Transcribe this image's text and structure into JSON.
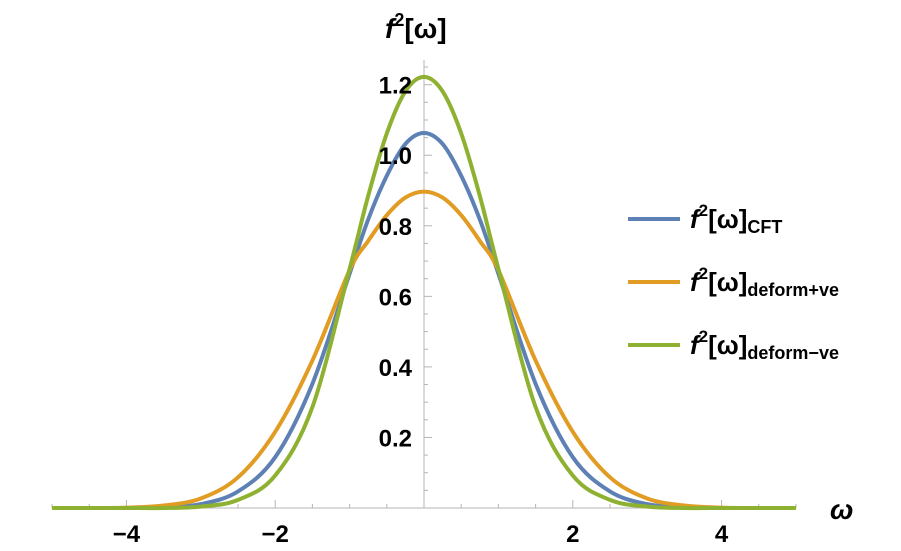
{
  "chart_data": {
    "type": "line",
    "title": "",
    "xlabel": "ω",
    "ylabel": {
      "fn": "f",
      "sup": "2",
      "arg": "[ω]"
    },
    "xlim": [
      -5,
      5
    ],
    "ylim": [
      0,
      1.27
    ],
    "x_ticks": [
      {
        "value": -4,
        "label": "−4"
      },
      {
        "value": -2,
        "label": "−2"
      },
      {
        "value": 2,
        "label": "2"
      },
      {
        "value": 4,
        "label": "4"
      }
    ],
    "y_ticks": [
      {
        "value": 0.2,
        "label": "0.2"
      },
      {
        "value": 0.4,
        "label": "0.4"
      },
      {
        "value": 0.6,
        "label": "0.6"
      },
      {
        "value": 0.8,
        "label": "0.8"
      },
      {
        "value": 1.0,
        "label": "1.0"
      },
      {
        "value": 1.2,
        "label": "1.2"
      }
    ],
    "legend_position": "right",
    "x": [
      -5,
      -4.5,
      -4,
      -3.5,
      -3,
      -2.5,
      -2,
      -1.5,
      -1,
      -0.75,
      -0.5,
      -0.25,
      0,
      0.25,
      0.5,
      0.75,
      1,
      1.5,
      2,
      2.5,
      3,
      3.5,
      4,
      4.5,
      5
    ],
    "series": [
      {
        "name_main": "f",
        "name_sup": "2",
        "name_arg": "[ω]",
        "name_sub": "CFT",
        "color": "#5E81B5",
        "values": [
          0.0,
          0.0,
          0.0,
          0.002,
          0.011,
          0.047,
          0.144,
          0.352,
          0.664,
          0.818,
          0.942,
          1.032,
          1.063,
          1.032,
          0.942,
          0.818,
          0.664,
          0.352,
          0.144,
          0.047,
          0.011,
          0.002,
          0.0,
          0.0,
          0.0
        ]
      },
      {
        "name_main": "f",
        "name_sup": "2",
        "name_arg": "[ω]",
        "name_sub": "deform+ve",
        "color": "#E19C24",
        "values": [
          0.0,
          0.0,
          0.001,
          0.007,
          0.027,
          0.087,
          0.216,
          0.418,
          0.674,
          0.757,
          0.83,
          0.88,
          0.897,
          0.88,
          0.83,
          0.757,
          0.674,
          0.418,
          0.216,
          0.087,
          0.027,
          0.007,
          0.001,
          0.0,
          0.0
        ]
      },
      {
        "name_main": "f",
        "name_sup": "2",
        "name_arg": "[ω]",
        "name_sub": "deform−ve",
        "color": "#8FB131",
        "values": [
          0.0,
          0.0,
          0.0,
          0.0,
          0.004,
          0.023,
          0.092,
          0.286,
          0.678,
          0.885,
          1.062,
          1.181,
          1.222,
          1.181,
          1.062,
          0.885,
          0.678,
          0.286,
          0.092,
          0.023,
          0.004,
          0.0,
          0.0,
          0.0,
          0.0
        ]
      }
    ]
  }
}
